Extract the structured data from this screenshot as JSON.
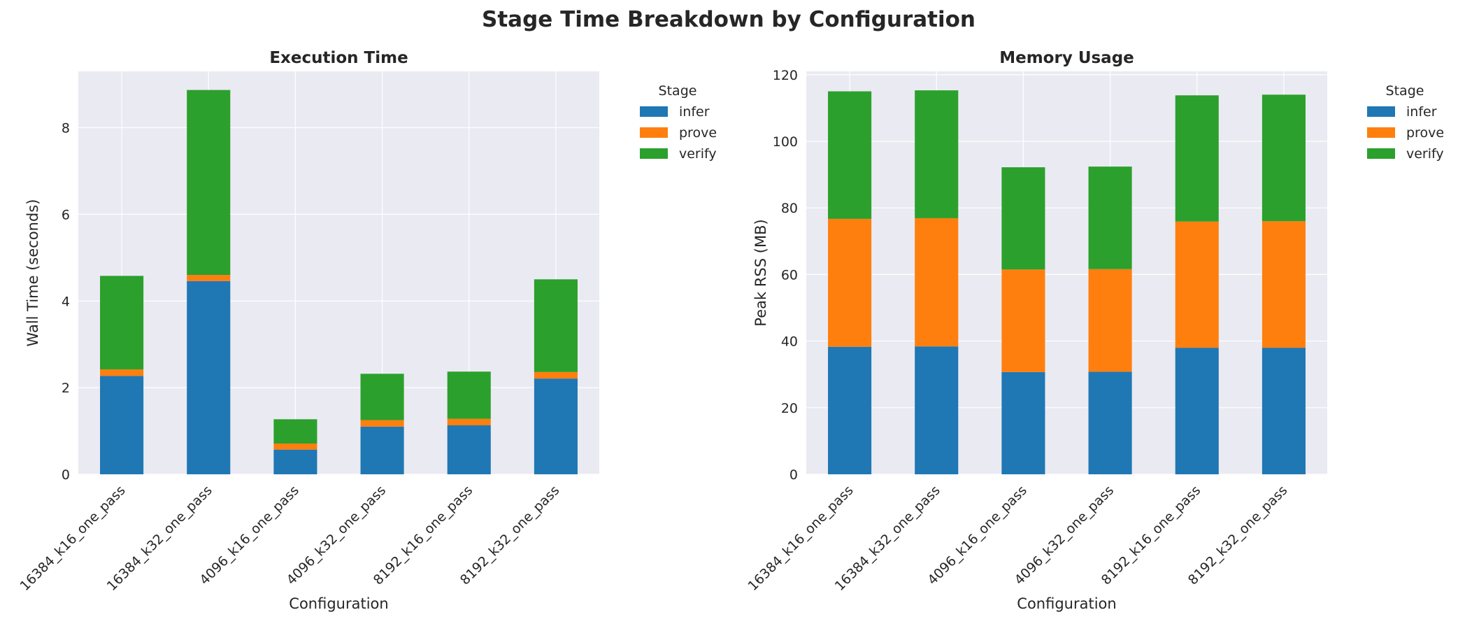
{
  "figure": {
    "title": "Stage Time Breakdown by Configuration"
  },
  "chart_data": [
    {
      "type": "bar",
      "stacked": true,
      "title": "Execution Time",
      "xlabel": "Configuration",
      "ylabel": "Wall Time (seconds)",
      "ylim": [
        0,
        9.3
      ],
      "yticks": [
        0,
        2,
        4,
        6,
        8
      ],
      "categories": [
        "16384_k16_one_pass",
        "16384_k32_one_pass",
        "4096_k16_one_pass",
        "4096_k32_one_pass",
        "8192_k16_one_pass",
        "8192_k32_one_pass"
      ],
      "legend": {
        "title": "Stage",
        "placement": "outside-top-right"
      },
      "grid": true,
      "series": [
        {
          "name": "infer",
          "color": "#1f77b4",
          "values": [
            2.27,
            4.46,
            0.57,
            1.1,
            1.13,
            2.21
          ]
        },
        {
          "name": "prove",
          "color": "#ff7f0e",
          "values": [
            0.15,
            0.14,
            0.14,
            0.15,
            0.15,
            0.15
          ]
        },
        {
          "name": "verify",
          "color": "#2ca02c",
          "values": [
            2.16,
            4.27,
            0.56,
            1.07,
            1.09,
            2.14
          ]
        }
      ]
    },
    {
      "type": "bar",
      "stacked": true,
      "title": "Memory Usage",
      "xlabel": "Configuration",
      "ylabel": "Peak RSS (MB)",
      "ylim": [
        0,
        121
      ],
      "yticks": [
        0,
        20,
        40,
        60,
        80,
        100,
        120
      ],
      "categories": [
        "16384_k16_one_pass",
        "16384_k32_one_pass",
        "4096_k16_one_pass",
        "4096_k32_one_pass",
        "8192_k16_one_pass",
        "8192_k32_one_pass"
      ],
      "legend": {
        "title": "Stage",
        "placement": "outside-top-right"
      },
      "grid": true,
      "series": [
        {
          "name": "infer",
          "color": "#1f77b4",
          "values": [
            38.3,
            38.4,
            30.7,
            30.8,
            38.0,
            38.0
          ]
        },
        {
          "name": "prove",
          "color": "#ff7f0e",
          "values": [
            38.4,
            38.5,
            30.8,
            30.8,
            37.9,
            38.0
          ]
        },
        {
          "name": "verify",
          "color": "#2ca02c",
          "values": [
            38.3,
            38.4,
            30.7,
            30.8,
            37.9,
            38.0
          ]
        }
      ]
    }
  ]
}
